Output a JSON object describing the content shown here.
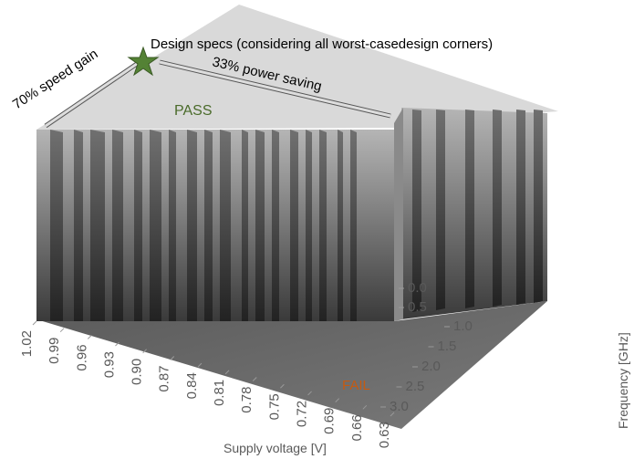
{
  "chart_data": {
    "type": "surface3d",
    "annotations": [
      "Design specs (considering all worst-casedesign corners)",
      "70% speed gain",
      "33% power saving",
      "PASS",
      "FAIL"
    ],
    "xlabel": "Supply voltage [V]",
    "ylabel": "Frequency [GHz]",
    "xlim": [
      1.02,
      0.63
    ],
    "xticks": [
      {
        "value": 1.02,
        "label": "1.02"
      },
      {
        "value": 0.99,
        "label": "0.99"
      },
      {
        "value": 0.96,
        "label": "0.96"
      },
      {
        "value": 0.93,
        "label": "0.93"
      },
      {
        "value": 0.9,
        "label": "0.90"
      },
      {
        "value": 0.87,
        "label": "0.87"
      },
      {
        "value": 0.84,
        "label": "0.84"
      },
      {
        "value": 0.81,
        "label": "0.81"
      },
      {
        "value": 0.78,
        "label": "0.78"
      },
      {
        "value": 0.75,
        "label": "0.75"
      },
      {
        "value": 0.72,
        "label": "0.72"
      },
      {
        "value": 0.69,
        "label": "0.69"
      },
      {
        "value": 0.66,
        "label": "0.66"
      },
      {
        "value": 0.63,
        "label": "0.63"
      }
    ],
    "yticks": [
      {
        "value": 0,
        "label": "0.0"
      },
      0.5,
      {
        "value": 1,
        "label": "1.0"
      },
      1.5,
      {
        "value": 2,
        "label": "2.0"
      },
      2.5,
      {
        "value": 3,
        "label": "3.0"
      }
    ]
  }
}
